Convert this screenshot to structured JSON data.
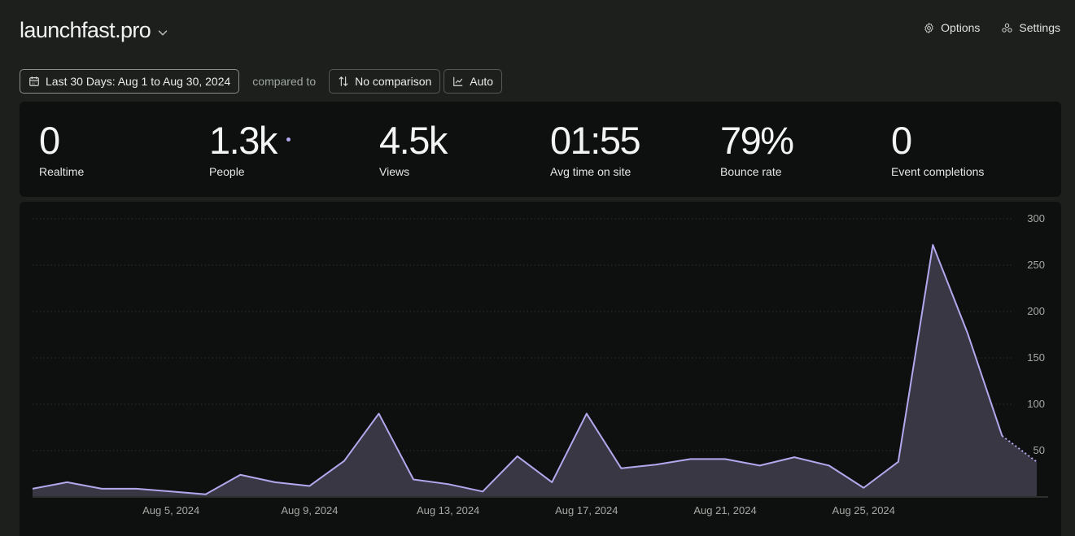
{
  "header": {
    "site_name": "launchfast.pro",
    "options_label": "Options",
    "settings_label": "Settings"
  },
  "filters": {
    "date_range_label": "Last 30 Days: Aug 1 to Aug 30, 2024",
    "compared_to_label": "compared to",
    "comparison_label": "No comparison",
    "granularity_label": "Auto"
  },
  "stats": [
    {
      "value": "0",
      "label": "Realtime"
    },
    {
      "value": "1.3k",
      "label": "People"
    },
    {
      "value": "4.5k",
      "label": "Views"
    },
    {
      "value": "01:55",
      "label": "Avg time on site"
    },
    {
      "value": "79%",
      "label": "Bounce rate"
    },
    {
      "value": "0",
      "label": "Event completions"
    }
  ],
  "chart_data": {
    "type": "area",
    "title": "",
    "xlabel": "",
    "ylabel": "",
    "x": [
      "Aug 1",
      "Aug 2",
      "Aug 3",
      "Aug 4",
      "Aug 5",
      "Aug 6",
      "Aug 7",
      "Aug 8",
      "Aug 9",
      "Aug 10",
      "Aug 11",
      "Aug 12",
      "Aug 13",
      "Aug 14",
      "Aug 15",
      "Aug 16",
      "Aug 17",
      "Aug 18",
      "Aug 19",
      "Aug 20",
      "Aug 21",
      "Aug 22",
      "Aug 23",
      "Aug 24",
      "Aug 25",
      "Aug 26",
      "Aug 27",
      "Aug 28",
      "Aug 29",
      "Aug 30"
    ],
    "x_tick_labels": [
      {
        "index": 4,
        "label": "Aug 5, 2024"
      },
      {
        "index": 8,
        "label": "Aug 9, 2024"
      },
      {
        "index": 12,
        "label": "Aug 13, 2024"
      },
      {
        "index": 16,
        "label": "Aug 17, 2024"
      },
      {
        "index": 20,
        "label": "Aug 21, 2024"
      },
      {
        "index": 24,
        "label": "Aug 25, 2024"
      }
    ],
    "series": [
      {
        "values": [
          8,
          15,
          8,
          8,
          5,
          2,
          23,
          15,
          11,
          38,
          89,
          18,
          13,
          5,
          43,
          15,
          89,
          30,
          34,
          40,
          40,
          33,
          42,
          33,
          9,
          37,
          271,
          176,
          65,
          37
        ]
      }
    ],
    "ylim": [
      0,
      300
    ],
    "yticks": [
      50,
      100,
      150,
      200,
      250,
      300
    ],
    "grid": true,
    "line_color": "#b3a8ee",
    "fill_color": "#3a3745",
    "last_point_dashed": true
  }
}
